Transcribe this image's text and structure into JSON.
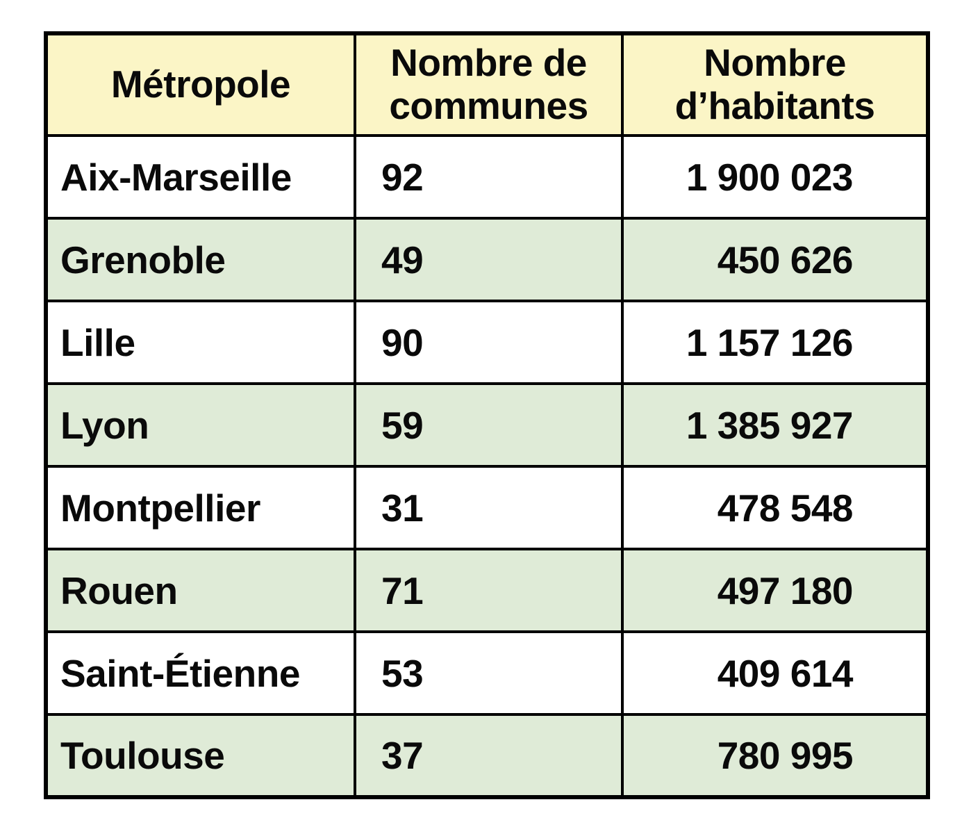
{
  "table": {
    "columns": [
      {
        "key": "metropole",
        "label": "Métropole"
      },
      {
        "key": "communes",
        "label": "Nombre de communes"
      },
      {
        "key": "habitants",
        "label": "Nombre d’habitants"
      }
    ],
    "rows": [
      {
        "metropole": "Aix-Marseille",
        "communes": "92",
        "habitants": "1 900 023"
      },
      {
        "metropole": "Grenoble",
        "communes": "49",
        "habitants": "450 626"
      },
      {
        "metropole": "Lille",
        "communes": "90",
        "habitants": "1 157 126"
      },
      {
        "metropole": "Lyon",
        "communes": "59",
        "habitants": "1 385 927"
      },
      {
        "metropole": "Montpellier",
        "communes": "31",
        "habitants": "478 548"
      },
      {
        "metropole": "Rouen",
        "communes": "71",
        "habitants": "497 180"
      },
      {
        "metropole": "Saint-Étienne",
        "communes": "53",
        "habitants": "409 614"
      },
      {
        "metropole": "Toulouse",
        "communes": "37",
        "habitants": "780 995"
      }
    ]
  },
  "colors": {
    "header_background": "#fbf5c6",
    "row_even_background": "#ffffff",
    "row_odd_background": "#dfebd7",
    "border": "#000000",
    "text": "#0a0a0a"
  }
}
